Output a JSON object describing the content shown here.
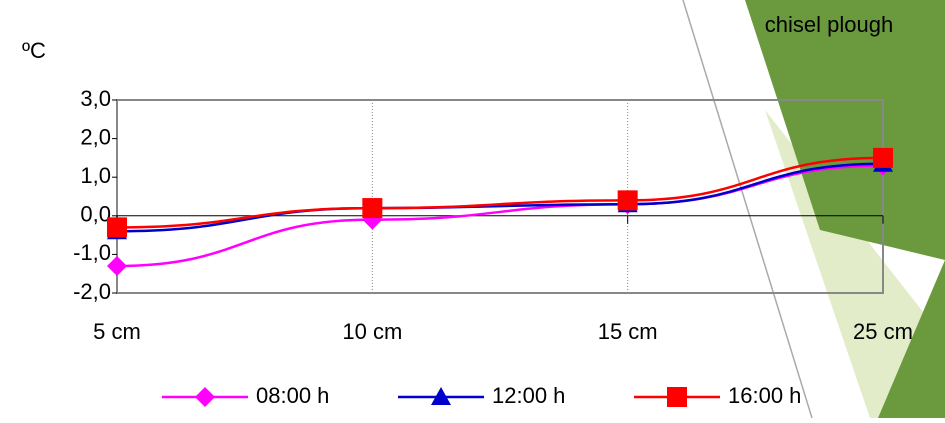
{
  "chart_data": {
    "type": "line",
    "title": "chisel plough",
    "y_axis_label": "ºC",
    "categories": [
      "5 cm",
      "10 cm",
      "15 cm",
      "25 cm"
    ],
    "series": [
      {
        "name": "08:00 h",
        "color": "#ff00ff",
        "marker": "diamond",
        "values": [
          -1.3,
          -0.1,
          0.3,
          1.3
        ]
      },
      {
        "name": "12:00 h",
        "color": "#0000cc",
        "marker": "triangle",
        "values": [
          -0.4,
          0.2,
          0.3,
          1.35
        ]
      },
      {
        "name": "16:00 h",
        "color": "#ff0000",
        "marker": "square",
        "values": [
          -0.3,
          0.2,
          0.4,
          1.5
        ]
      }
    ],
    "ylim": [
      -2,
      3
    ],
    "yticks": [
      {
        "value": -2,
        "label": "-2,0"
      },
      {
        "value": -1,
        "label": "-1,0"
      },
      {
        "value": 0,
        "label": "0,0"
      },
      {
        "value": 1,
        "label": "1,0"
      },
      {
        "value": 2,
        "label": "2,0"
      },
      {
        "value": 3,
        "label": "3,0"
      }
    ],
    "grid": true
  }
}
